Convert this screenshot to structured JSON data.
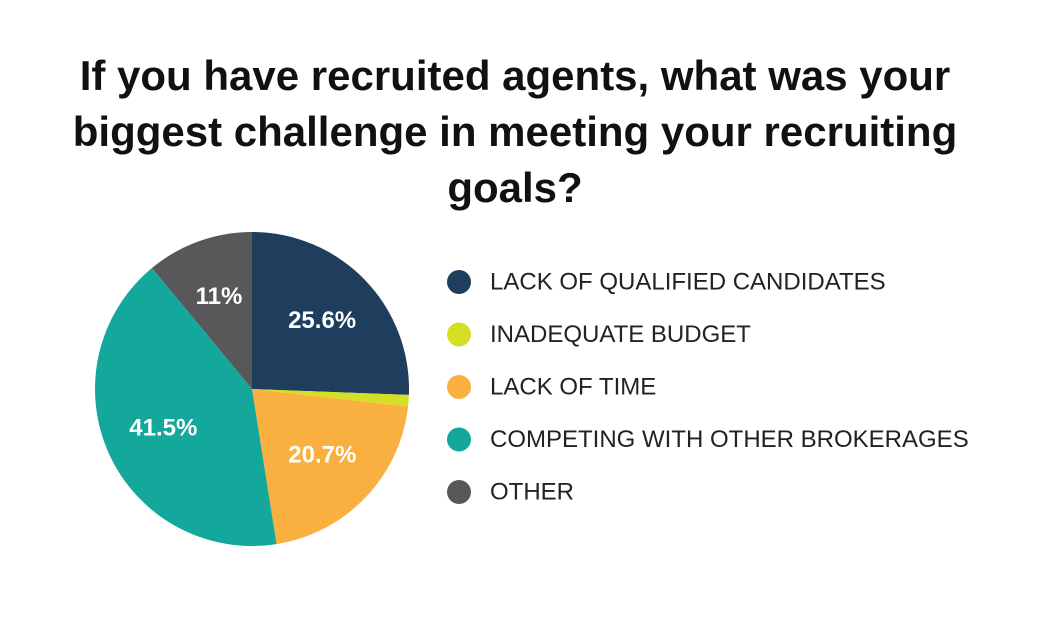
{
  "chart_data": {
    "type": "pie",
    "title": "If you have recruited agents, what was your biggest challenge in meeting your recruiting goals?",
    "categories": [
      "LACK OF QUALIFIED CANDIDATES",
      "INADEQUATE BUDGET",
      "LACK OF TIME",
      "COMPETING WITH OTHER BROKERAGES",
      "OTHER"
    ],
    "values": [
      25.6,
      1.2,
      20.7,
      41.5,
      11
    ],
    "value_labels": [
      "25.6%",
      null,
      "20.7%",
      "41.5%",
      "11%"
    ],
    "colors": [
      "#1f3d5c",
      "#d4df26",
      "#f9b040",
      "#14a79c",
      "#58585a"
    ],
    "legend": "right"
  }
}
